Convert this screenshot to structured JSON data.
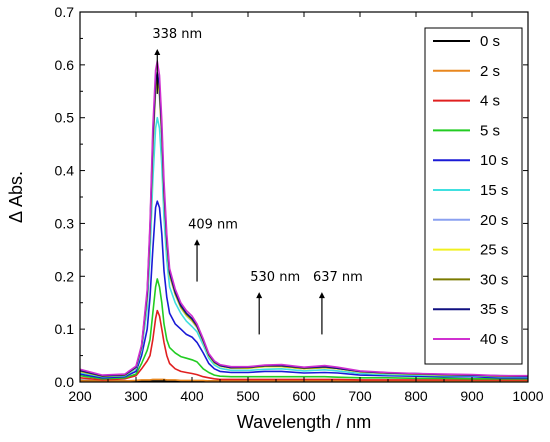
{
  "chart_data": {
    "type": "line",
    "xlabel": "Wavelength / nm",
    "ylabel": "Δ Abs.",
    "xlim": [
      200,
      1000
    ],
    "ylim": [
      0,
      0.7
    ],
    "x_ticks": [
      200,
      300,
      400,
      500,
      600,
      700,
      800,
      900,
      1000
    ],
    "y_ticks": [
      0.0,
      0.1,
      0.2,
      0.3,
      0.4,
      0.5,
      0.6,
      0.7
    ],
    "grid": false,
    "legend_position": "top-right",
    "x": [
      200,
      240,
      280,
      300,
      310,
      320,
      325,
      330,
      335,
      338,
      342,
      346,
      350,
      355,
      360,
      370,
      380,
      390,
      400,
      409,
      420,
      430,
      440,
      450,
      470,
      500,
      530,
      560,
      600,
      637,
      660,
      700,
      750,
      800,
      850,
      900,
      950,
      1000
    ],
    "series": [
      {
        "name": "0 s",
        "color": "#000000",
        "values": [
          0.003,
          0.002,
          0.002,
          0.002,
          0.002,
          0.002,
          0.002,
          0.002,
          0.002,
          0.002,
          0.002,
          0.002,
          0.002,
          0.002,
          0.002,
          0.002,
          0.002,
          0.002,
          0.002,
          0.002,
          0.002,
          0.002,
          0.002,
          0.002,
          0.002,
          0.002,
          0.002,
          0.002,
          0.002,
          0.002,
          0.002,
          0.002,
          0.002,
          0.002,
          0.002,
          0.002,
          0.002,
          0.002
        ]
      },
      {
        "name": "2 s",
        "color": "#e8871e",
        "values": [
          0.002,
          0.002,
          0.002,
          0.003,
          0.004,
          0.004,
          0.004,
          0.005,
          0.005,
          0.005,
          0.005,
          0.005,
          0.005,
          0.004,
          0.004,
          0.004,
          0.003,
          0.003,
          0.003,
          0.003,
          0.003,
          0.002,
          0.002,
          0.002,
          0.002,
          0.002,
          0.002,
          0.002,
          0.002,
          0.002,
          0.002,
          0.002,
          0.002,
          0.002,
          0.002,
          0.002,
          0.002,
          0.002
        ]
      },
      {
        "name": "4 s",
        "color": "#e02020",
        "values": [
          0.008,
          0.004,
          0.006,
          0.012,
          0.025,
          0.04,
          0.05,
          0.08,
          0.12,
          0.135,
          0.125,
          0.1,
          0.075,
          0.05,
          0.035,
          0.025,
          0.02,
          0.018,
          0.016,
          0.014,
          0.01,
          0.008,
          0.006,
          0.005,
          0.005,
          0.005,
          0.005,
          0.005,
          0.005,
          0.005,
          0.005,
          0.004,
          0.004,
          0.004,
          0.004,
          0.004,
          0.004,
          0.004
        ]
      },
      {
        "name": "5 s",
        "color": "#22cc22",
        "values": [
          0.012,
          0.006,
          0.008,
          0.015,
          0.035,
          0.06,
          0.08,
          0.13,
          0.18,
          0.195,
          0.18,
          0.15,
          0.11,
          0.08,
          0.065,
          0.055,
          0.048,
          0.045,
          0.042,
          0.038,
          0.025,
          0.018,
          0.013,
          0.011,
          0.01,
          0.01,
          0.01,
          0.01,
          0.01,
          0.01,
          0.009,
          0.008,
          0.008,
          0.007,
          0.007,
          0.006,
          0.006,
          0.006
        ]
      },
      {
        "name": "10 s",
        "color": "#1a1ad6",
        "values": [
          0.015,
          0.008,
          0.01,
          0.02,
          0.05,
          0.1,
          0.16,
          0.25,
          0.33,
          0.342,
          0.33,
          0.28,
          0.21,
          0.16,
          0.13,
          0.11,
          0.1,
          0.09,
          0.085,
          0.075,
          0.055,
          0.035,
          0.025,
          0.02,
          0.018,
          0.018,
          0.02,
          0.02,
          0.017,
          0.018,
          0.017,
          0.013,
          0.012,
          0.011,
          0.01,
          0.01,
          0.008,
          0.008
        ]
      },
      {
        "name": "15 s",
        "color": "#40e0e0",
        "values": [
          0.018,
          0.01,
          0.012,
          0.025,
          0.06,
          0.14,
          0.24,
          0.38,
          0.48,
          0.5,
          0.48,
          0.41,
          0.31,
          0.23,
          0.18,
          0.15,
          0.13,
          0.115,
          0.105,
          0.095,
          0.07,
          0.045,
          0.032,
          0.026,
          0.022,
          0.022,
          0.024,
          0.025,
          0.021,
          0.023,
          0.021,
          0.016,
          0.014,
          0.013,
          0.012,
          0.012,
          0.01,
          0.01
        ]
      },
      {
        "name": "20 s",
        "color": "#8aa0f0",
        "values": [
          0.02,
          0.011,
          0.013,
          0.027,
          0.065,
          0.16,
          0.28,
          0.44,
          0.55,
          0.565,
          0.54,
          0.46,
          0.35,
          0.26,
          0.2,
          0.165,
          0.14,
          0.125,
          0.115,
          0.103,
          0.076,
          0.05,
          0.036,
          0.03,
          0.026,
          0.026,
          0.029,
          0.029,
          0.025,
          0.027,
          0.025,
          0.019,
          0.016,
          0.015,
          0.013,
          0.013,
          0.011,
          0.011
        ]
      },
      {
        "name": "25 s",
        "color": "#f0f020",
        "values": [
          0.02,
          0.011,
          0.013,
          0.027,
          0.066,
          0.16,
          0.28,
          0.445,
          0.555,
          0.57,
          0.545,
          0.465,
          0.355,
          0.262,
          0.202,
          0.166,
          0.141,
          0.126,
          0.116,
          0.104,
          0.077,
          0.05,
          0.036,
          0.03,
          0.026,
          0.026,
          0.029,
          0.029,
          0.025,
          0.027,
          0.025,
          0.019,
          0.016,
          0.015,
          0.013,
          0.013,
          0.011,
          0.011
        ]
      },
      {
        "name": "30 s",
        "color": "#7a7a00",
        "values": [
          0.021,
          0.011,
          0.013,
          0.028,
          0.067,
          0.165,
          0.285,
          0.45,
          0.56,
          0.575,
          0.55,
          0.47,
          0.36,
          0.265,
          0.205,
          0.168,
          0.143,
          0.128,
          0.118,
          0.105,
          0.078,
          0.051,
          0.037,
          0.031,
          0.027,
          0.027,
          0.03,
          0.03,
          0.026,
          0.028,
          0.026,
          0.02,
          0.017,
          0.015,
          0.014,
          0.013,
          0.011,
          0.011
        ]
      },
      {
        "name": "35 s",
        "color": "#101080",
        "values": [
          0.022,
          0.012,
          0.014,
          0.028,
          0.068,
          0.168,
          0.29,
          0.46,
          0.57,
          0.585,
          0.56,
          0.478,
          0.365,
          0.27,
          0.208,
          0.17,
          0.145,
          0.13,
          0.12,
          0.107,
          0.079,
          0.052,
          0.038,
          0.031,
          0.027,
          0.028,
          0.031,
          0.031,
          0.027,
          0.029,
          0.026,
          0.02,
          0.017,
          0.016,
          0.014,
          0.013,
          0.012,
          0.011
        ]
      },
      {
        "name": "40 s",
        "color": "#d030d0",
        "values": [
          0.024,
          0.013,
          0.015,
          0.03,
          0.07,
          0.175,
          0.3,
          0.48,
          0.59,
          0.607,
          0.58,
          0.495,
          0.38,
          0.28,
          0.215,
          0.176,
          0.15,
          0.135,
          0.125,
          0.11,
          0.082,
          0.054,
          0.04,
          0.033,
          0.029,
          0.029,
          0.032,
          0.033,
          0.028,
          0.031,
          0.028,
          0.021,
          0.018,
          0.016,
          0.015,
          0.014,
          0.012,
          0.012
        ]
      }
    ],
    "annotations": [
      {
        "text": "338 nm",
        "x": 338,
        "arrow_y0": 0.545,
        "arrow_y1": 0.63
      },
      {
        "text": "409 nm",
        "x": 409,
        "arrow_y0": 0.19,
        "arrow_y1": 0.27
      },
      {
        "text": "530 nm",
        "x": 520,
        "arrow_y0": 0.09,
        "arrow_y1": 0.17
      },
      {
        "text": "637 nm",
        "x": 632,
        "arrow_y0": 0.09,
        "arrow_y1": 0.17
      }
    ]
  }
}
